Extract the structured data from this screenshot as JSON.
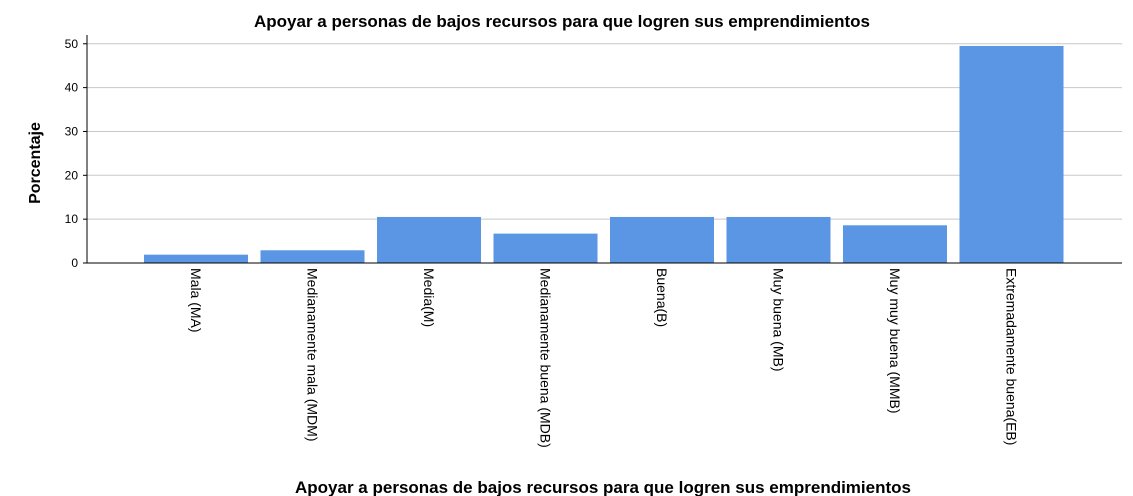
{
  "chart_data": {
    "type": "bar",
    "title": "Apoyar a personas de bajos recursos para que logren sus emprendimientos",
    "xlabel": "Apoyar a personas de bajos recursos para que logren sus emprendimientos",
    "ylabel": "Porcentaje",
    "ylim": [
      0,
      52
    ],
    "yticks": [
      "0",
      "10",
      "20",
      "30",
      "40",
      "50"
    ],
    "grid": true,
    "bar_color": "#5a96e3",
    "categories": [
      "Mala (MA)",
      "Medianamente mala (MDM)",
      "Media(M)",
      "Medianamente buena (MDB)",
      "Buena(B)",
      "Muy buena (MB)",
      "Muy muy buena (MMB)",
      "Extremadamente buena(EB)"
    ],
    "values": [
      1.9,
      2.9,
      10.5,
      6.7,
      10.5,
      10.5,
      8.6,
      49.5
    ]
  }
}
